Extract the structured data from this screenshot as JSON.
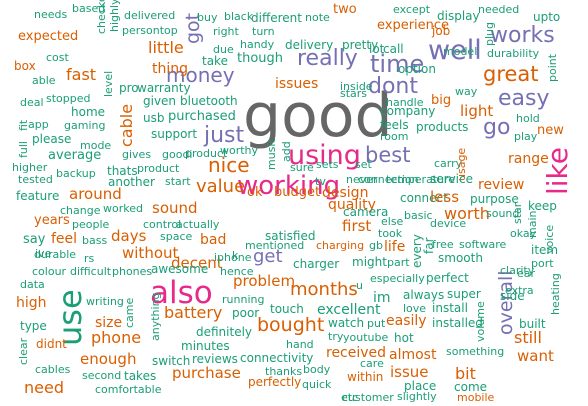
{
  "palette": {
    "green": "#1b9e77",
    "orange": "#d95f02",
    "purple": "#7570b3",
    "pink": "#e7298a",
    "gray": "#666666"
  },
  "words": [
    "good",
    "use",
    "also",
    "using",
    "working",
    "like",
    "well",
    "works",
    "time",
    "really",
    "dont",
    "great",
    "easy",
    "money",
    "just",
    "nice",
    "best",
    "go",
    "got",
    "get",
    "bought",
    "overall",
    "months",
    "value",
    "battery",
    "phone",
    "problem",
    "range",
    "worth",
    "sound",
    "days",
    "fast",
    "little",
    "cable",
    "light",
    "review",
    "without",
    "enough",
    "purchase",
    "bit",
    "still",
    "want",
    "need",
    "issue",
    "issues",
    "first",
    "life",
    "thing",
    "quality",
    "size",
    "easily",
    "almost",
    "received",
    "within",
    "perfectly",
    "connectivity",
    "reviews",
    "switch",
    "minutes",
    "definitely",
    "poor",
    "running",
    "decent",
    "bad",
    "awesome",
    "satisfied",
    "mentioned",
    "budget",
    "design",
    "camera",
    "smooth",
    "perfect",
    "free",
    "software",
    "side",
    "item",
    "super",
    "port",
    "far",
    "especially",
    "always",
    "install",
    "installed",
    "love",
    "volume",
    "something",
    "hot",
    "come",
    "mobile",
    "place",
    "slightly",
    "customer",
    "care",
    "thanks",
    "quick",
    "body",
    "hand",
    "youtube",
    "try",
    "watch",
    "put",
    "excellent",
    "touch",
    "charger",
    "might",
    "part",
    "im",
    "every",
    "voice",
    "heating",
    "built",
    "extra",
    "star",
    "keep",
    "okay",
    "main",
    "purpose",
    "except",
    "display",
    "needed",
    "upto",
    "plug",
    "model",
    "durability",
    "point",
    "way",
    "new",
    "hold",
    "play",
    "company",
    "products",
    "feels",
    "room",
    "temperature",
    "never",
    "carry",
    "usage",
    "service",
    "option",
    "pretty",
    "lot",
    "call",
    "inside",
    "handle",
    "big",
    "job",
    "experience",
    "two",
    "expected",
    "box",
    "cost",
    "able",
    "deal",
    "stopped",
    "app",
    "gaming",
    "home",
    "level",
    "warranty",
    "pro",
    "given",
    "bluetooth",
    "usb",
    "purchased",
    "support",
    "average",
    "higher",
    "tested",
    "backup",
    "feature",
    "around",
    "change",
    "worked",
    "thats",
    "product",
    "another",
    "goodi",
    "gives",
    "start",
    "control",
    "actually",
    "space",
    "years",
    "people",
    "bass",
    "say",
    "feel",
    "durable",
    "rs",
    "colour",
    "difficult",
    "phones",
    "data",
    "high",
    "writing",
    "type",
    "didnt",
    "came",
    "anything",
    "clear",
    "cables",
    "second",
    "takes",
    "comfortable",
    "needs",
    "based",
    "delivered",
    "persontop",
    "black",
    "different",
    "note",
    "turn",
    "right",
    "handy",
    "due",
    "though",
    "take",
    "delivery",
    "stars",
    "fit",
    "full",
    "please",
    "mode",
    "set",
    "ok",
    "sets",
    "connect",
    "less",
    "gb",
    "took",
    "else",
    "basic",
    "charging",
    "hence",
    "iphone",
    "u",
    "etc",
    "checked",
    "highly",
    "buy",
    "ive",
    "music",
    "add",
    "sure",
    "tv",
    "k",
    "connection",
    "product",
    "worthy",
    "device",
    "sound",
    "clarity",
    "ear"
  ]
}
